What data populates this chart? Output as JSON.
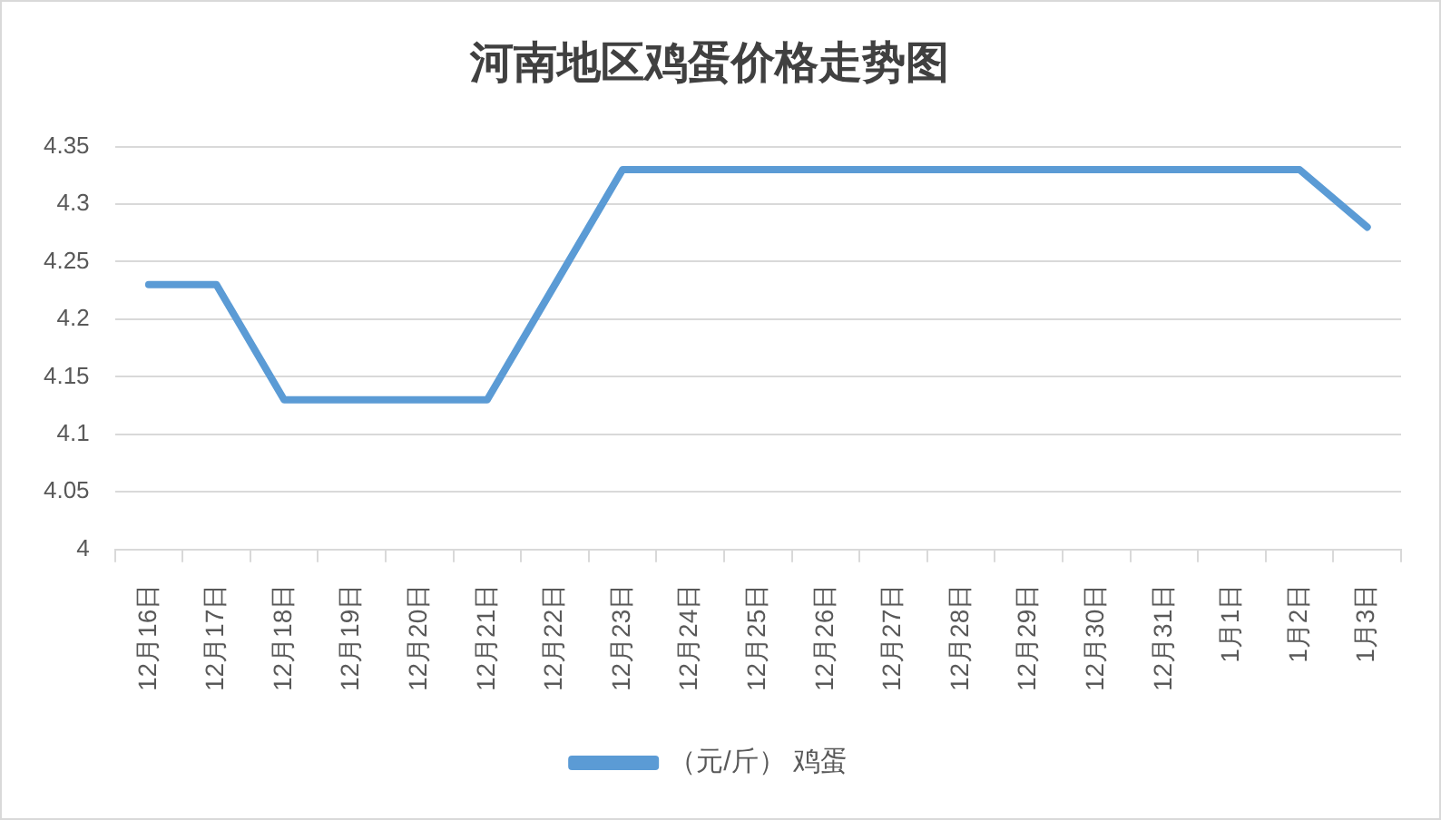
{
  "chart_data": {
    "type": "line",
    "title": "河南地区鸡蛋价格走势图",
    "categories": [
      "12月16日",
      "12月17日",
      "12月18日",
      "12月19日",
      "12月20日",
      "12月21日",
      "12月22日",
      "12月23日",
      "12月24日",
      "12月25日",
      "12月26日",
      "12月27日",
      "12月28日",
      "12月29日",
      "12月30日",
      "12月31日",
      "1月1日",
      "1月2日",
      "1月3日"
    ],
    "series": [
      {
        "name": "（元/斤） 鸡蛋",
        "color": "#5b9bd5",
        "values": [
          4.23,
          4.23,
          4.13,
          4.13,
          4.13,
          4.13,
          4.23,
          4.33,
          4.33,
          4.33,
          4.33,
          4.33,
          4.33,
          4.33,
          4.33,
          4.33,
          4.33,
          4.33,
          4.28
        ]
      }
    ],
    "ylim": [
      4,
      4.35
    ],
    "yticks": [
      4,
      4.05,
      4.1,
      4.15,
      4.2,
      4.25,
      4.3,
      4.35
    ],
    "grid": "y",
    "legend": "bottom",
    "marker": "none"
  }
}
